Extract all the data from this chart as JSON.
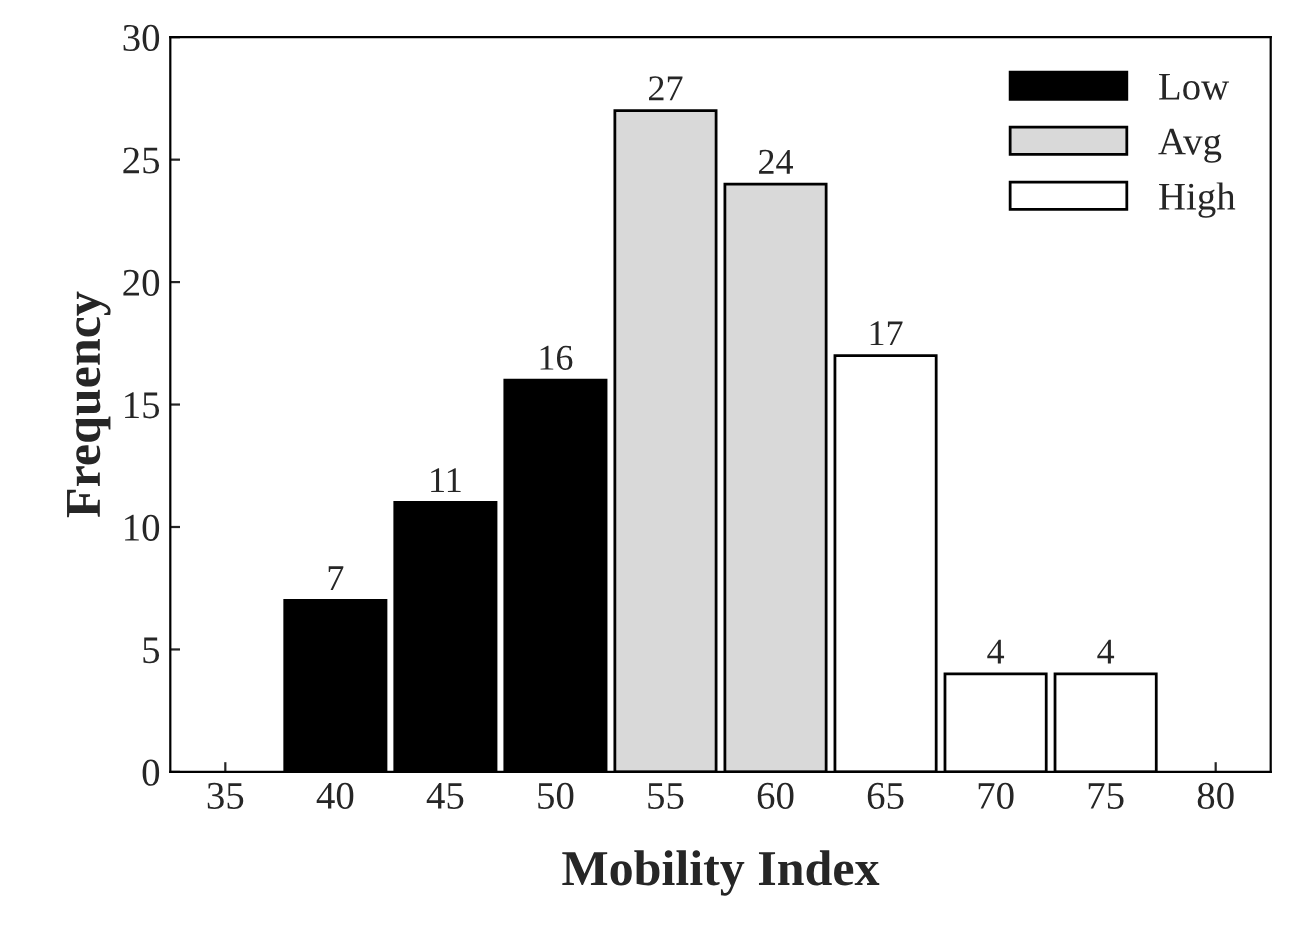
{
  "chart_data": {
    "type": "bar",
    "xlabel": "Mobility Index",
    "ylabel": "Frequency",
    "xlim": [
      32.5,
      82.5
    ],
    "xticks": [
      35,
      40,
      45,
      50,
      55,
      60,
      65,
      70,
      75,
      80
    ],
    "ylim": [
      0,
      30
    ],
    "yticks": [
      0,
      5,
      10,
      15,
      20,
      25,
      30
    ],
    "series": [
      {
        "name": "Low",
        "color": "#000000",
        "x": [
          40,
          45,
          50
        ],
        "values": [
          7,
          11,
          16
        ]
      },
      {
        "name": "Avg",
        "color": "#d9d9d9",
        "x": [
          55,
          60
        ],
        "values": [
          27,
          24
        ]
      },
      {
        "name": "High",
        "color": "#ffffff",
        "x": [
          65,
          70,
          75
        ],
        "values": [
          17,
          4,
          4
        ]
      }
    ],
    "data_labels": true,
    "legend": "top right",
    "grid": false
  }
}
